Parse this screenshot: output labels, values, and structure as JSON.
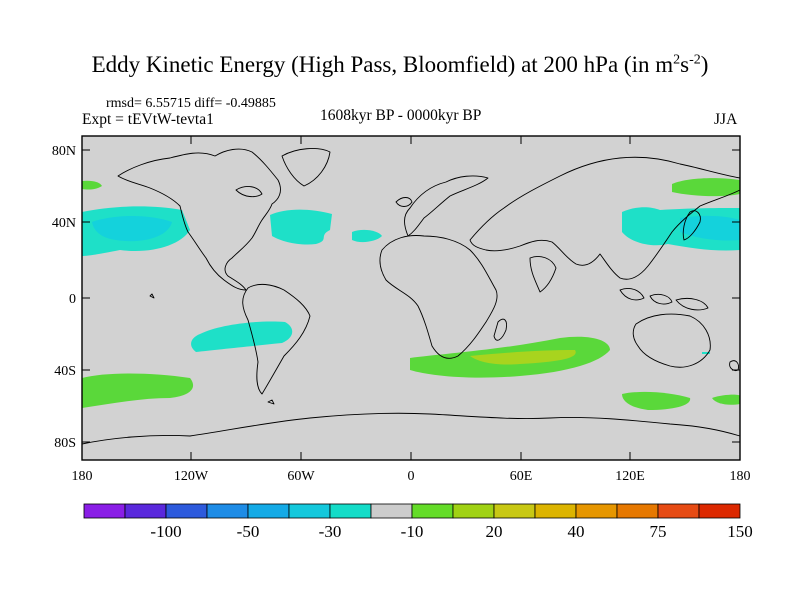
{
  "title_prefix": "Eddy Kinetic Energy (High Pass, Bloomfield) at 200 hPa (in m",
  "title_sup1": "2",
  "title_mid": "s",
  "title_sup2": "-2",
  "title_suffix": ")",
  "stats": "rmsd= 6.55715 diff= -0.49885",
  "expt": "Expt = tEVtW-tevta1",
  "period": "1608kyr BP - 0000kyr BP",
  "season": "JJA",
  "lat_ticks": [
    "80N",
    "40N",
    "0",
    "40S",
    "80S"
  ],
  "lon_ticks": [
    "180",
    "120W",
    "60W",
    "0",
    "60E",
    "120E",
    "180"
  ],
  "colorbar": {
    "colors": [
      "#8a1ee6",
      "#5a28dc",
      "#2d5adc",
      "#1e8ce6",
      "#14aae6",
      "#14c8dc",
      "#14dcc8",
      "#cccccc",
      "#64dc28",
      "#a0d214",
      "#c8c814",
      "#dcb400",
      "#e69600",
      "#e67800",
      "#e64b14",
      "#dc2800"
    ],
    "labels": [
      "-100",
      "-50",
      "-30",
      "-10",
      "20",
      "40",
      "75",
      "150"
    ]
  },
  "colors": {
    "ocean_land_bg": "#d2d2d2",
    "cyan_anomaly": "#1ee0c8",
    "cyan_strong": "#14d2dc",
    "green_anomaly": "#5ad83a",
    "yellow_anomaly": "#a8d41e"
  }
}
